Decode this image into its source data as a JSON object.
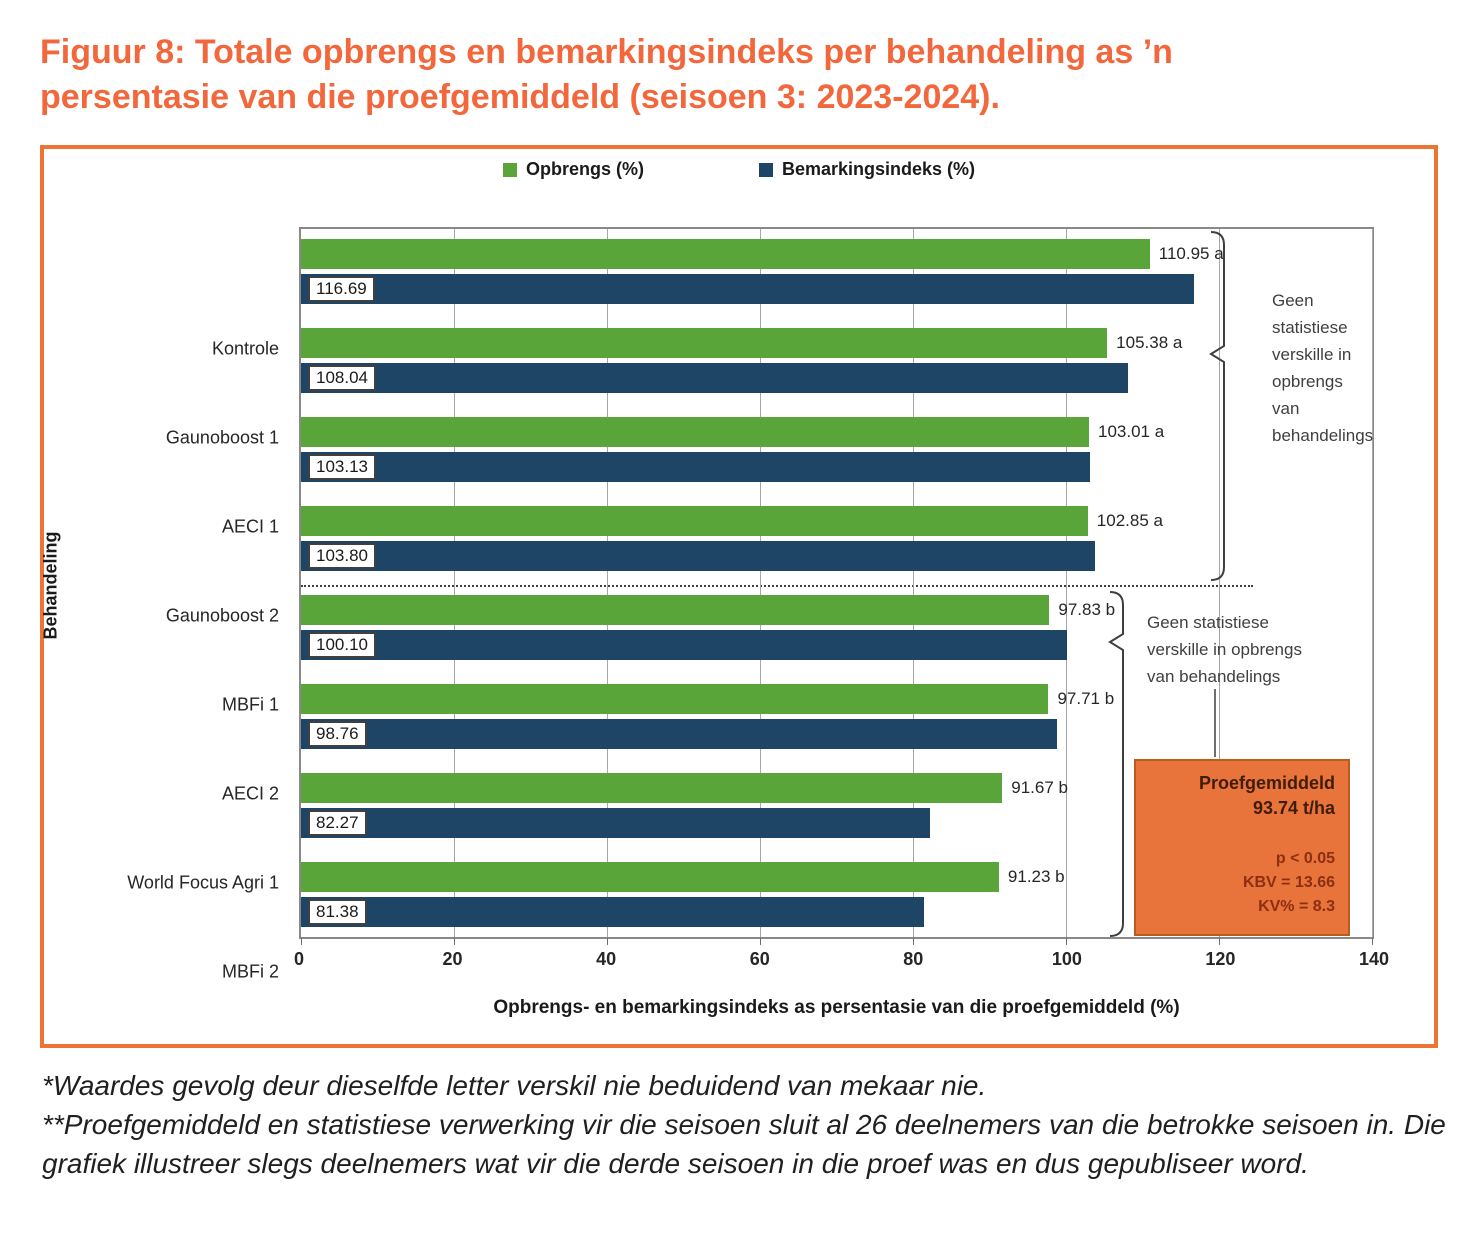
{
  "title": "Figuur 8: Totale opbrengs en bemarkingsindeks per behandeling as ’n persentasie van die proefgemiddeld (seisoen 3: 2023-2024).",
  "legend": [
    {
      "label": "Opbrengs (%)",
      "color": "#5aa53a"
    },
    {
      "label": "Bemarkingsindeks (%)",
      "color": "#1e4466"
    }
  ],
  "chart_data": {
    "type": "bar",
    "orientation": "horizontal",
    "title": "Totale opbrengs en bemarkingsindeks per behandeling as persentasie van die proefgemiddeld (seisoen 3: 2023-2024)",
    "categories": [
      "Kontrole",
      "Gaunoboost 1",
      "AECI 1",
      "Gaunoboost 2",
      "MBFi 1",
      "AECI 2",
      "World Focus Agri 1",
      "MBFi 2"
    ],
    "series": [
      {
        "name": "Opbrengs (%)",
        "color": "#5aa53a",
        "values": [
          110.95,
          105.38,
          103.01,
          102.85,
          97.83,
          97.71,
          91.67,
          91.23
        ],
        "labels": [
          "110.95 a",
          "105.38 a",
          "103.01 a",
          "102.85 a",
          "97.83 b",
          "97.71 b",
          "91.67 b",
          "91.23 b"
        ]
      },
      {
        "name": "Bemarkingsindeks (%)",
        "color": "#1e4466",
        "values": [
          116.69,
          108.04,
          103.13,
          103.8,
          100.1,
          98.76,
          82.27,
          81.38
        ],
        "labels": [
          "116.69",
          "108.04",
          "103.13",
          "103.80",
          "100.10",
          "98.76",
          "82.27",
          "81.38"
        ]
      }
    ],
    "xlabel": "Opbrengs- en bemarkingsindeks as persentasie van die proefgemiddeld (%)",
    "ylabel": "Behandeling",
    "xlim": [
      0,
      140
    ],
    "xticks": [
      0,
      20,
      40,
      60,
      80,
      100,
      120,
      140
    ],
    "grid": "vertical",
    "legend_position": "top",
    "group_divider_after_category": "Gaunoboost 2"
  },
  "annotations": {
    "group_a": "Geen\nstatistiese\nverskille in\nopbrengs\nvan\nbehandelings",
    "group_b": "Geen statistiese\nverskille in opbrengs\nvan behandelings",
    "box_title": "Proefgemiddeld",
    "box_value": "93.74 t/ha",
    "box_stats": "p < 0.05\nKBV = 13.66\nKV% = 8.3"
  },
  "footnotes": [
    "*Waardes gevolg deur dieselfde letter verskil nie beduidend van mekaar nie.",
    "**Proefgemiddeld en statistiese verwerking vir die seisoen sluit al 26 deelnemers van die betrokke seisoen in. Die grafiek illustreer slegs deelnemers wat vir die derde seisoen in die proef was en dus gepubliseer word."
  ]
}
